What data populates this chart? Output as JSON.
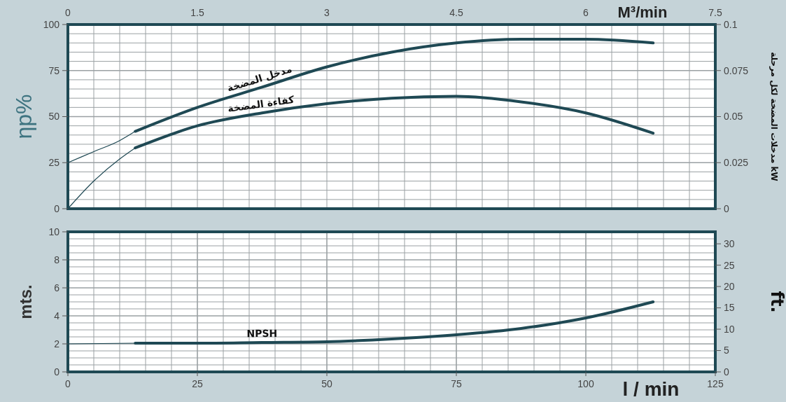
{
  "chart_data": [
    {
      "type": "line",
      "ylabel": "ηp%",
      "y2label": "مدخلات المضخة لكل مرحلة kW",
      "x2label": "M³/min",
      "xlim": [
        0,
        125
      ],
      "xticks": [
        {
          "value": 0,
          "label": null
        },
        {
          "value": 5,
          "label": null
        },
        {
          "value": 10,
          "label": null
        },
        {
          "value": 15,
          "label": null
        },
        {
          "value": 20,
          "label": null
        },
        {
          "value": 25,
          "label": null
        },
        {
          "value": 30,
          "label": null
        },
        {
          "value": 35,
          "label": null
        },
        {
          "value": 40,
          "label": null
        },
        {
          "value": 45,
          "label": null
        },
        {
          "value": 50,
          "label": null
        },
        {
          "value": 55,
          "label": null
        },
        {
          "value": 60,
          "label": null
        },
        {
          "value": 65,
          "label": null
        },
        {
          "value": 70,
          "label": null
        },
        {
          "value": 75,
          "label": null
        },
        {
          "value": 80,
          "label": null
        },
        {
          "value": 85,
          "label": null
        },
        {
          "value": 90,
          "label": null
        },
        {
          "value": 95,
          "label": null
        },
        {
          "value": 100,
          "label": null
        },
        {
          "value": 105,
          "label": null
        },
        {
          "value": 110,
          "label": null
        },
        {
          "value": 115,
          "label": null
        },
        {
          "value": 120,
          "label": null
        },
        {
          "value": 125,
          "label": null
        }
      ],
      "x2lim": [
        0,
        7.5
      ],
      "x2ticks": [
        0,
        1.5,
        3,
        4.5,
        6,
        7.5
      ],
      "ylim": [
        0,
        100
      ],
      "yticks": [
        0,
        {
          "value": 5,
          "label": null
        },
        {
          "value": 10,
          "label": null
        },
        {
          "value": 15,
          "label": null
        },
        {
          "value": 20,
          "label": null
        },
        25,
        {
          "value": 30,
          "label": null
        },
        {
          "value": 35,
          "label": null
        },
        {
          "value": 40,
          "label": null
        },
        {
          "value": 45,
          "label": null
        },
        50,
        {
          "value": 55,
          "label": null
        },
        {
          "value": 60,
          "label": null
        },
        {
          "value": 65,
          "label": null
        },
        {
          "value": 70,
          "label": null
        },
        75,
        {
          "value": 80,
          "label": null
        },
        {
          "value": 85,
          "label": null
        },
        {
          "value": 90,
          "label": null
        },
        {
          "value": 95,
          "label": null
        },
        100
      ],
      "y2lim": [
        0,
        0.1
      ],
      "y2ticks": [
        0,
        0.025,
        0.05,
        0.075,
        0.1
      ],
      "grid": true,
      "tick_labels": "y",
      "series": [
        {
          "color": "#1f4954",
          "axis": "y2",
          "x": [
            0,
            5,
            10,
            13
          ],
          "values": [
            0.025,
            0.031,
            0.037,
            0.042
          ]
        },
        {
          "name": "مدخل المضخة",
          "color": "#1f4954",
          "axis": "y2",
          "x": [
            13,
            25,
            37.5,
            50,
            62.5,
            75,
            87.5,
            100,
            113
          ],
          "values": [
            0.042,
            0.055,
            0.066,
            0.077,
            0.085,
            0.09,
            0.092,
            0.092,
            0.09
          ]
        },
        {
          "color": "#1f4954",
          "x": [
            0,
            5,
            10,
            13
          ],
          "values": [
            0,
            15,
            27,
            33
          ]
        },
        {
          "name": "كفاءة المضخة",
          "color": "#1f4954",
          "x": [
            13,
            25,
            37.5,
            50,
            62.5,
            75,
            87.5,
            100,
            113
          ],
          "values": [
            33,
            45,
            52,
            57,
            60,
            61,
            58,
            52,
            41
          ]
        }
      ]
    },
    {
      "type": "line",
      "xlabel": "l / min",
      "ylabel": "mts.",
      "y2label": "ft.",
      "xlim": [
        0,
        125
      ],
      "xticks": [
        0,
        {
          "value": 5,
          "label": null
        },
        {
          "value": 10,
          "label": null
        },
        {
          "value": 15,
          "label": null
        },
        {
          "value": 20,
          "label": null
        },
        25,
        {
          "value": 30,
          "label": null
        },
        {
          "value": 35,
          "label": null
        },
        {
          "value": 40,
          "label": null
        },
        {
          "value": 45,
          "label": null
        },
        50,
        {
          "value": 55,
          "label": null
        },
        {
          "value": 60,
          "label": null
        },
        {
          "value": 65,
          "label": null
        },
        {
          "value": 70,
          "label": null
        },
        75,
        {
          "value": 80,
          "label": null
        },
        {
          "value": 85,
          "label": null
        },
        {
          "value": 90,
          "label": null
        },
        {
          "value": 95,
          "label": null
        },
        100,
        {
          "value": 105,
          "label": null
        },
        {
          "value": 110,
          "label": null
        },
        {
          "value": 115,
          "label": null
        },
        {
          "value": 120,
          "label": null
        },
        125
      ],
      "ylim": [
        0,
        10
      ],
      "yticks": [
        0,
        {
          "value": 0.5,
          "label": null
        },
        {
          "value": 1,
          "label": null
        },
        {
          "value": 1.5,
          "label": null
        },
        2,
        {
          "value": 2.5,
          "label": null
        },
        {
          "value": 3,
          "label": null
        },
        {
          "value": 3.5,
          "label": null
        },
        4,
        {
          "value": 4.5,
          "label": null
        },
        {
          "value": 5,
          "label": null
        },
        {
          "value": 5.5,
          "label": null
        },
        6,
        {
          "value": 6.5,
          "label": null
        },
        {
          "value": 7,
          "label": null
        },
        {
          "value": 7.5,
          "label": null
        },
        8,
        {
          "value": 8.5,
          "label": null
        },
        {
          "value": 9,
          "label": null
        },
        {
          "value": 9.5,
          "label": null
        },
        10
      ],
      "y2lim": [
        0,
        32.81
      ],
      "y2ticks": [
        0,
        5,
        10,
        15,
        20,
        25,
        30
      ],
      "grid": true,
      "series": [
        {
          "color": "#1f4954",
          "x": [
            0,
            13
          ],
          "values": [
            2,
            2.05
          ]
        },
        {
          "name": "NPSH",
          "color": "#1f4954",
          "x": [
            13,
            25,
            37.5,
            50,
            62.5,
            75,
            87.5,
            100,
            113
          ],
          "values": [
            2.05,
            2.05,
            2.1,
            2.15,
            2.35,
            2.65,
            3.1,
            3.85,
            5.0
          ]
        }
      ]
    }
  ]
}
